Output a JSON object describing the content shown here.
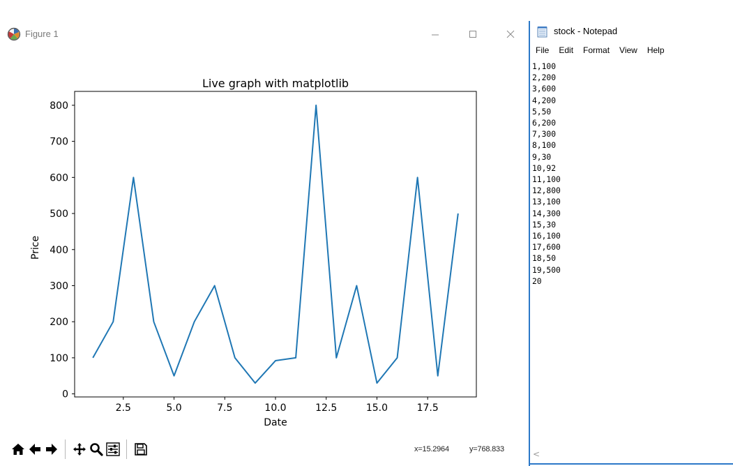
{
  "figure_window": {
    "title": "Figure 1",
    "app_icon": "matplotlib-icon",
    "controls": {
      "minimize": "—",
      "maximize": "☐",
      "close": "✕"
    },
    "toolbar": {
      "buttons": [
        {
          "name": "home",
          "icon": "home-icon"
        },
        {
          "name": "back",
          "icon": "arrow-left-icon"
        },
        {
          "name": "forward",
          "icon": "arrow-right-icon"
        },
        {
          "name": "pan",
          "icon": "move-icon"
        },
        {
          "name": "zoom",
          "icon": "magnifier-icon"
        },
        {
          "name": "configure",
          "icon": "sliders-icon"
        },
        {
          "name": "save",
          "icon": "floppy-icon"
        }
      ],
      "coord_x": "x=15.2964",
      "coord_y": "y=768.833"
    }
  },
  "chart_data": {
    "type": "line",
    "title": "Live graph with matplotlib",
    "xlabel": "Date",
    "ylabel": "Price",
    "x": [
      1,
      2,
      3,
      4,
      5,
      6,
      7,
      8,
      9,
      10,
      11,
      12,
      13,
      14,
      15,
      16,
      17,
      18,
      19
    ],
    "series": [
      {
        "values": [
          100,
          200,
          600,
          200,
          50,
          200,
          300,
          100,
          30,
          92,
          100,
          800,
          100,
          300,
          30,
          100,
          600,
          50,
          500
        ],
        "color": "#1f77b4"
      }
    ],
    "xticks": [
      2.5,
      5.0,
      7.5,
      10.0,
      12.5,
      15.0,
      17.5
    ],
    "xtick_labels": [
      "2.5",
      "5.0",
      "7.5",
      "10.0",
      "12.5",
      "15.0",
      "17.5"
    ],
    "yticks": [
      0,
      100,
      200,
      300,
      400,
      500,
      600,
      700,
      800
    ],
    "ytick_labels": [
      "0",
      "100",
      "200",
      "300",
      "400",
      "500",
      "600",
      "700",
      "800"
    ],
    "xlim": [
      0.1,
      19.9
    ],
    "ylim": [
      -8.5,
      838.5
    ],
    "grid": false
  },
  "notepad": {
    "title": "stock - Notepad",
    "icon": "notepad-icon",
    "menus": [
      "File",
      "Edit",
      "Format",
      "View",
      "Help"
    ],
    "content": "1,100\n2,200\n3,600\n4,200\n5,50\n6,200\n7,300\n8,100\n9,30\n10,92\n11,100\n12,800\n13,100\n14,300\n15,30\n16,100\n17,600\n18,50\n19,500\n20",
    "scroll_left": "<"
  }
}
